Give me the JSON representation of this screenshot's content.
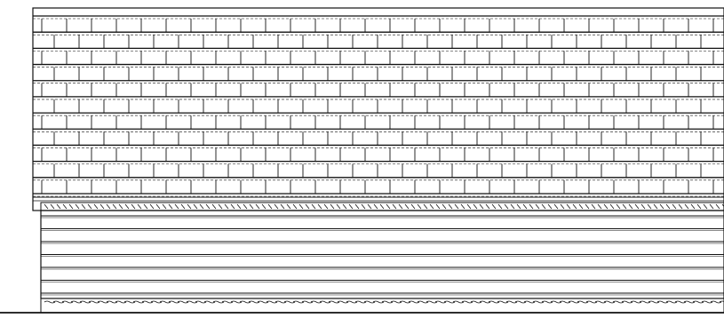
{
  "drawing": {
    "type": "elevation",
    "background_color": "#ffffff",
    "ink_color": "#111111",
    "roof_course_count": 11,
    "siding_course_count": 6
  }
}
